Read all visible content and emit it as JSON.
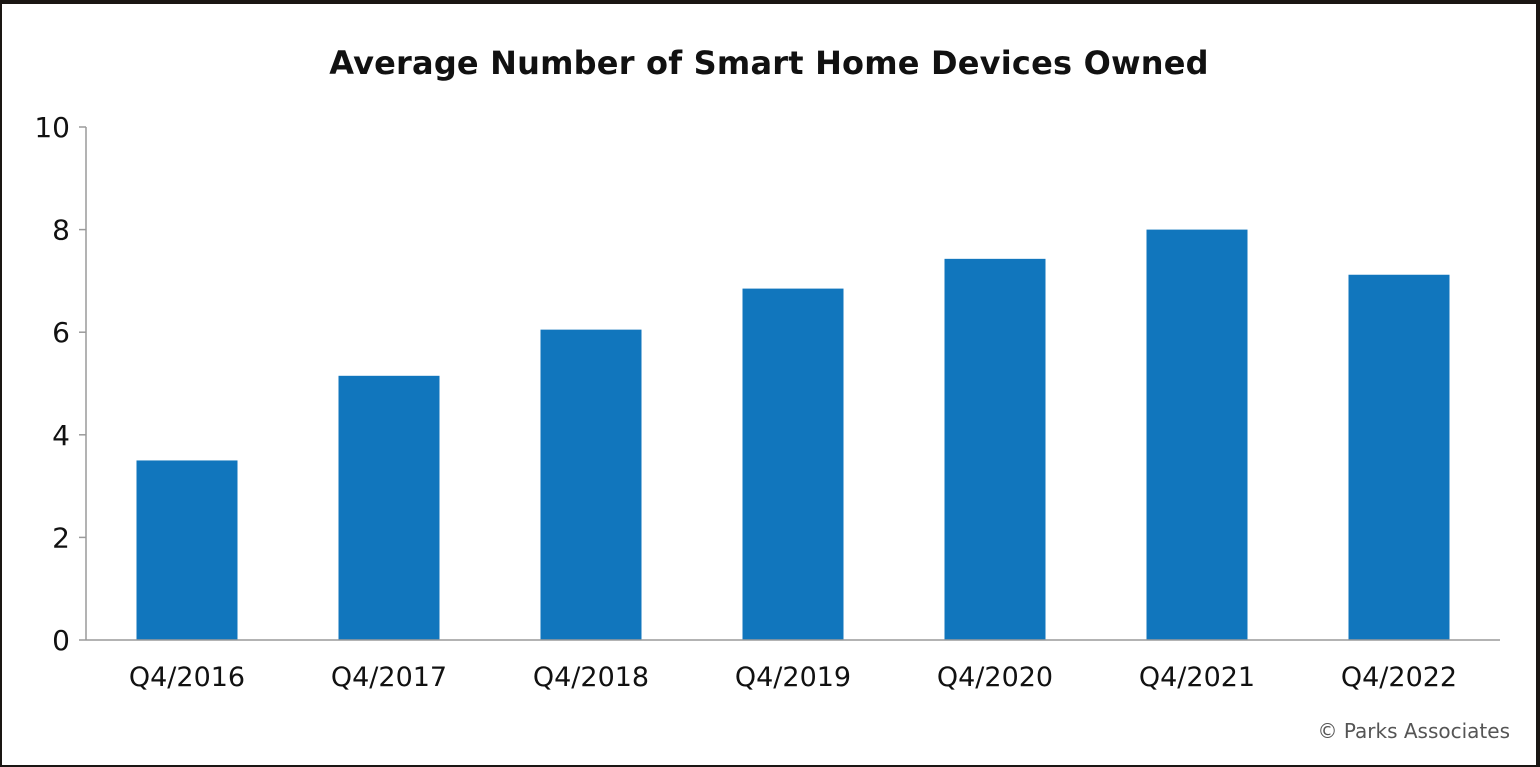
{
  "chart_data": {
    "type": "bar",
    "title": "Average Number of Smart Home Devices Owned",
    "xlabel": "",
    "ylabel": "",
    "categories": [
      "Q4/2016",
      "Q4/2017",
      "Q4/2018",
      "Q4/2019",
      "Q4/2020",
      "Q4/2021",
      "Q4/2022"
    ],
    "values": [
      3.5,
      5.15,
      6.05,
      6.85,
      7.43,
      8.0,
      7.12
    ],
    "ylim": [
      0,
      10
    ],
    "yticks": [
      0,
      2,
      4,
      6,
      8,
      10
    ],
    "bar_color": "#1176bd",
    "grid": false,
    "legend": "none"
  },
  "source": "© Parks Associates"
}
